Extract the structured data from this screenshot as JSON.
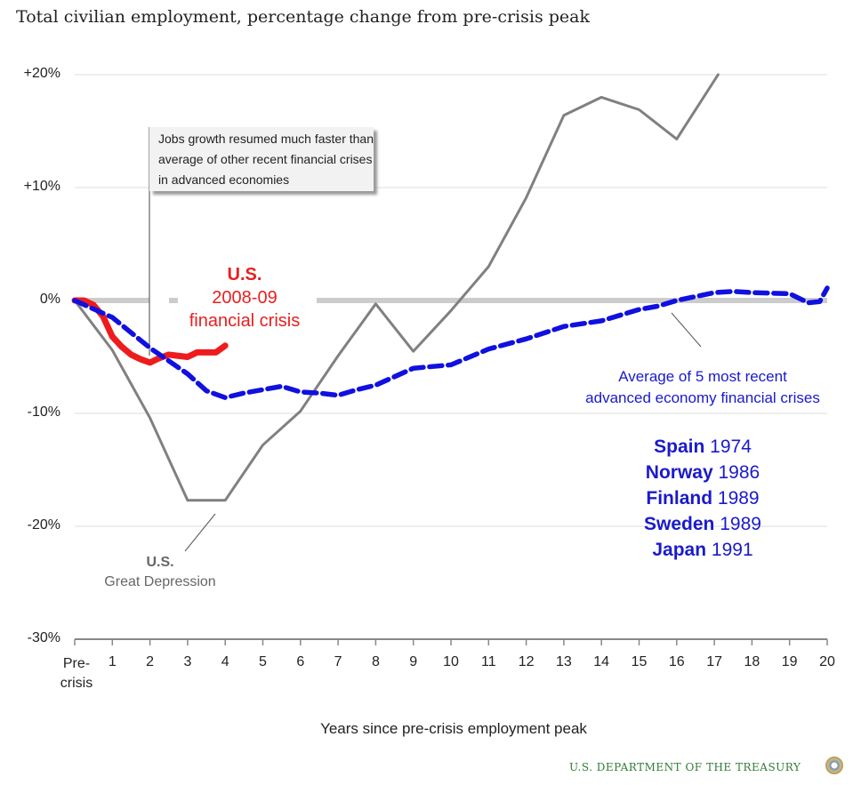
{
  "chart_data": {
    "type": "line",
    "title": "Total civilian employment, percentage change from pre-crisis peak",
    "xlabel": "Years since pre-crisis employment peak",
    "ylabel": "",
    "xlim": [
      0,
      20
    ],
    "ylim": [
      -30,
      20
    ],
    "grid": true,
    "x_tick_labels": [
      "Pre-crisis peak",
      "1",
      "2",
      "3",
      "4",
      "5",
      "6",
      "7",
      "8",
      "9",
      "10",
      "11",
      "12",
      "13",
      "14",
      "15",
      "16",
      "17",
      "18",
      "19",
      "20"
    ],
    "y_tick_labels": [
      "+20%",
      "+10%",
      "0%",
      "-10%",
      "-20%",
      "-30%"
    ],
    "y_ticks": [
      20,
      10,
      0,
      -10,
      -20,
      -30
    ],
    "series": [
      {
        "name": "U.S. Great Depression",
        "color": "#808080",
        "style": "solid",
        "x": [
          0,
          1,
          2,
          3,
          4,
          5,
          6,
          7,
          8,
          9,
          10,
          11,
          12,
          13,
          14,
          15,
          16,
          17.1
        ],
        "y": [
          0,
          -4.4,
          -10.4,
          -17.7,
          -17.7,
          -12.8,
          -9.8,
          -4.9,
          -0.3,
          -4.5,
          -0.9,
          3.0,
          9.1,
          16.4,
          18.0,
          16.9,
          14.3,
          20.0
        ]
      },
      {
        "name": "U.S. 2008-09 financial crisis",
        "color": "#ee1c1c",
        "style": "solid",
        "x": [
          0,
          0.25,
          0.5,
          0.75,
          1,
          1.25,
          1.5,
          1.75,
          2,
          2.25,
          2.5,
          2.75,
          3,
          3.25,
          3.5,
          3.75,
          4
        ],
        "y": [
          0,
          0,
          -0.4,
          -1.4,
          -3.2,
          -4.1,
          -4.8,
          -5.2,
          -5.5,
          -5.1,
          -4.8,
          -4.9,
          -5.0,
          -4.6,
          -4.6,
          -4.6,
          -4.0
        ]
      },
      {
        "name": "Average of 5 most recent advanced economy financial crises",
        "color": "#1010e0",
        "style": "dashed",
        "x": [
          0,
          1,
          2,
          3,
          3.5,
          4,
          4.5,
          5,
          5.5,
          6,
          6.5,
          7,
          7.5,
          8,
          9,
          10,
          11,
          12,
          13,
          14,
          15,
          15.5,
          16,
          17,
          17.5,
          18,
          19,
          19.5,
          19.8,
          20
        ],
        "y": [
          0,
          -1.5,
          -4.2,
          -6.5,
          -8,
          -8.6,
          -8.2,
          -7.9,
          -7.6,
          -8.1,
          -8.2,
          -8.4,
          -7.9,
          -7.5,
          -6.0,
          -5.7,
          -4.3,
          -3.4,
          -2.3,
          -1.8,
          -0.8,
          -0.5,
          0,
          0.7,
          0.8,
          0.7,
          0.6,
          -0.2,
          -0.1,
          1.1
        ]
      }
    ],
    "annotations": {
      "note": "Jobs growth resumed much faster than average of other recent financial crises in advanced economies",
      "us_bold": "U.S.",
      "us_line2": "2008-09",
      "us_line3": "financial crisis",
      "gd_bold": "U.S.",
      "gd_line2": "Great Depression",
      "avg_line1": "Average of 5 most recent",
      "avg_line2": "advanced economy financial crises",
      "countries": [
        {
          "name": "Spain",
          "year": "1974"
        },
        {
          "name": "Norway",
          "year": "1986"
        },
        {
          "name": "Finland",
          "year": "1989"
        },
        {
          "name": "Sweden",
          "year": "1989"
        },
        {
          "name": "Japan",
          "year": "1991"
        }
      ]
    }
  },
  "footer": {
    "source": "U.S. DEPARTMENT OF THE TREASURY",
    "seal_icon": "treasury-seal"
  }
}
